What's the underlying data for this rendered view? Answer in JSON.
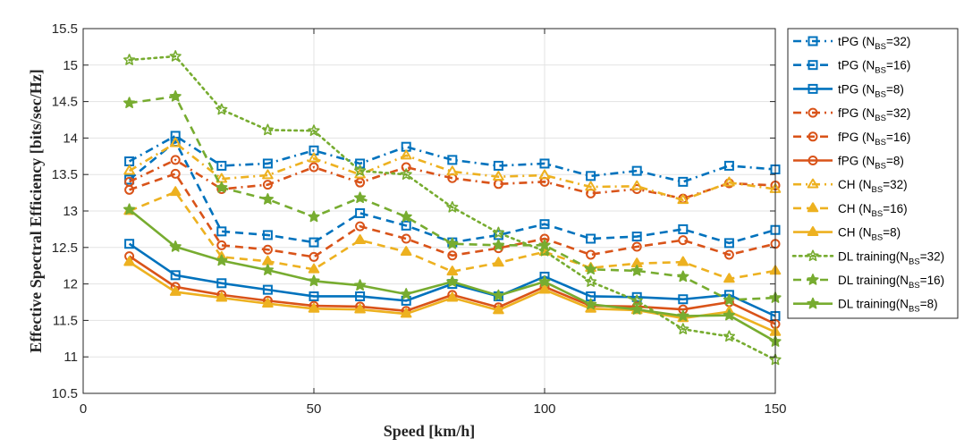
{
  "chart_data": {
    "type": "line",
    "title": "",
    "xlabel": "Speed [km/h]",
    "ylabel": "Effective Spectral Efficiency [bits/sec/Hz]",
    "xlim": [
      0,
      150
    ],
    "ylim": [
      10.5,
      15.5
    ],
    "xticks": [
      "0",
      "50",
      "100",
      "150"
    ],
    "yticks": [
      "10.5",
      "11",
      "11.5",
      "12",
      "12.5",
      "13",
      "13.5",
      "14",
      "14.5",
      "15",
      "15.5"
    ],
    "grid": true,
    "legend_position": "outside-right",
    "x": [
      10,
      20,
      30,
      40,
      50,
      60,
      70,
      80,
      90,
      100,
      110,
      120,
      130,
      140,
      150
    ],
    "series": [
      {
        "name": "tPG (N",
        "sub": "BS",
        "suffix": "=32)",
        "color": "#0072BD",
        "dash": "dashdot",
        "marker": "square",
        "filled": false,
        "values": [
          13.68,
          14.03,
          13.62,
          13.65,
          13.83,
          13.65,
          13.88,
          13.7,
          13.62,
          13.65,
          13.48,
          13.55,
          13.4,
          13.62,
          13.57
        ]
      },
      {
        "name": "tPG (N",
        "sub": "BS",
        "suffix": "=16)",
        "color": "#0072BD",
        "dash": "dash",
        "marker": "square",
        "filled": false,
        "values": [
          13.43,
          13.95,
          12.72,
          12.67,
          12.57,
          12.97,
          12.8,
          12.57,
          12.67,
          12.82,
          12.62,
          12.65,
          12.75,
          12.56,
          12.74
        ]
      },
      {
        "name": "tPG (N",
        "sub": "BS",
        "suffix": "=8)",
        "color": "#0072BD",
        "dash": "solid",
        "marker": "square",
        "filled": false,
        "values": [
          12.55,
          12.12,
          12.01,
          11.92,
          11.83,
          11.83,
          11.77,
          12.0,
          11.83,
          12.1,
          11.83,
          11.82,
          11.79,
          11.85,
          11.56
        ]
      },
      {
        "name": "fPG (N",
        "sub": "BS",
        "suffix": "=32)",
        "color": "#D95319",
        "dash": "dashdot",
        "marker": "circle",
        "filled": false,
        "values": [
          13.4,
          13.7,
          13.3,
          13.36,
          13.6,
          13.39,
          13.6,
          13.45,
          13.37,
          13.4,
          13.24,
          13.3,
          13.17,
          13.38,
          13.35
        ]
      },
      {
        "name": "fPG (N",
        "sub": "BS",
        "suffix": "=16)",
        "color": "#D95319",
        "dash": "dash",
        "marker": "circle",
        "filled": false,
        "values": [
          13.29,
          13.51,
          12.53,
          12.47,
          12.37,
          12.79,
          12.62,
          12.39,
          12.49,
          12.62,
          12.4,
          12.51,
          12.6,
          12.4,
          12.55
        ]
      },
      {
        "name": "fPG (N",
        "sub": "BS",
        "suffix": "=8)",
        "color": "#D95319",
        "dash": "solid",
        "marker": "circle",
        "filled": false,
        "values": [
          12.38,
          11.96,
          11.85,
          11.77,
          11.7,
          11.69,
          11.63,
          11.85,
          11.68,
          11.96,
          11.7,
          11.69,
          11.65,
          11.75,
          11.45
        ]
      },
      {
        "name": "CH (N",
        "sub": "BS",
        "suffix": "=32)",
        "color": "#EDB120",
        "dash": "dashdot",
        "marker": "triangle",
        "filled": false,
        "values": [
          13.55,
          13.93,
          13.44,
          13.49,
          13.72,
          13.5,
          13.76,
          13.54,
          13.47,
          13.49,
          13.33,
          13.34,
          13.15,
          13.39,
          13.3
        ]
      },
      {
        "name": "CH (N",
        "sub": "BS",
        "suffix": "=16)",
        "color": "#EDB120",
        "dash": "dash",
        "marker": "triangle",
        "filled": true,
        "values": [
          13.0,
          13.26,
          12.37,
          12.31,
          12.2,
          12.6,
          12.44,
          12.17,
          12.29,
          12.44,
          12.22,
          12.28,
          12.3,
          12.07,
          12.18
        ]
      },
      {
        "name": "CH (N",
        "sub": "BS",
        "suffix": "=8)",
        "color": "#EDB120",
        "dash": "solid",
        "marker": "triangle",
        "filled": true,
        "values": [
          12.3,
          11.89,
          11.81,
          11.73,
          11.66,
          11.65,
          11.59,
          11.81,
          11.64,
          11.92,
          11.66,
          11.64,
          11.53,
          11.62,
          11.34
        ]
      },
      {
        "name": "DL training(N",
        "sub": "BS",
        "suffix": "=32)",
        "color": "#77AC30",
        "dash": "dot",
        "marker": "star",
        "filled": false,
        "values": [
          15.07,
          15.12,
          14.39,
          14.11,
          14.1,
          13.55,
          13.5,
          13.05,
          12.7,
          12.45,
          12.03,
          11.77,
          11.38,
          11.28,
          10.96
        ]
      },
      {
        "name": "DL training(N",
        "sub": "BS",
        "suffix": "=16)",
        "color": "#77AC30",
        "dash": "dash",
        "marker": "star",
        "filled": true,
        "values": [
          14.48,
          14.57,
          13.32,
          13.16,
          12.92,
          13.18,
          12.92,
          12.55,
          12.53,
          12.53,
          12.2,
          12.18,
          12.1,
          11.78,
          11.81
        ]
      },
      {
        "name": "DL training(N",
        "sub": "BS",
        "suffix": "=8)",
        "color": "#77AC30",
        "dash": "solid",
        "marker": "star",
        "filled": true,
        "values": [
          13.02,
          12.51,
          12.32,
          12.19,
          12.04,
          11.98,
          11.86,
          12.03,
          11.84,
          12.03,
          11.72,
          11.65,
          11.56,
          11.57,
          11.21
        ]
      }
    ]
  }
}
